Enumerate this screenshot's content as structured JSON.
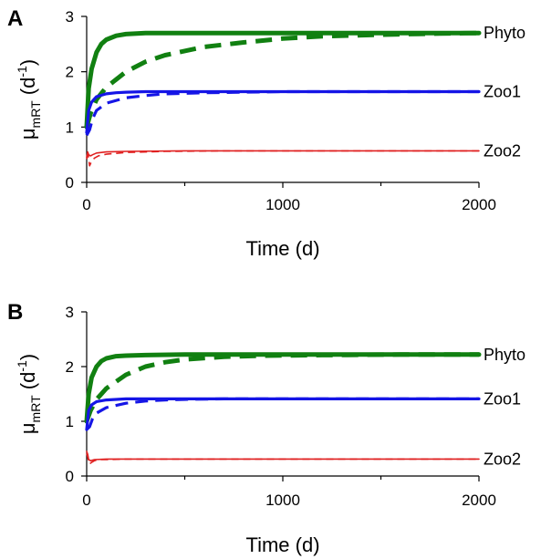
{
  "chart_data": [
    {
      "type": "line",
      "panel": "A",
      "xlabel": "Time (d)",
      "ylabel": {
        "mu": "μ",
        "sub": "mRT",
        "open": " (d",
        "sup": "-1",
        "close": ")"
      },
      "xlim": [
        0,
        2000
      ],
      "ylim": [
        0,
        3
      ],
      "xticks": [
        0,
        1000,
        2000
      ],
      "yticks": [
        0,
        1,
        2,
        3
      ],
      "grid": false,
      "legend": "series labels at right end of each line",
      "series": [
        {
          "name": "Phyto",
          "color": "#118011",
          "style": "solid",
          "width": 5,
          "x": [
            0,
            10,
            25,
            50,
            75,
            100,
            150,
            200,
            300,
            400,
            600,
            1000,
            1500,
            2000
          ],
          "y": [
            1.0,
            1.7,
            2.05,
            2.35,
            2.5,
            2.58,
            2.65,
            2.68,
            2.7,
            2.7,
            2.7,
            2.7,
            2.7,
            2.7
          ]
        },
        {
          "name": "Phyto",
          "color": "#118011",
          "style": "dashed",
          "width": 5,
          "x": [
            0,
            20,
            50,
            100,
            200,
            300,
            400,
            600,
            800,
            1000,
            1200,
            1500,
            1800,
            2000
          ],
          "y": [
            1.0,
            1.25,
            1.5,
            1.72,
            2.0,
            2.18,
            2.3,
            2.45,
            2.53,
            2.6,
            2.64,
            2.67,
            2.69,
            2.7
          ]
        },
        {
          "name": "Zoo1",
          "color": "#1515e6",
          "style": "solid",
          "width": 3.2,
          "x": [
            0,
            10,
            25,
            50,
            100,
            150,
            200,
            300,
            500,
            1000,
            2000
          ],
          "y": [
            0.9,
            1.3,
            1.45,
            1.55,
            1.6,
            1.62,
            1.63,
            1.64,
            1.64,
            1.64,
            1.64
          ]
        },
        {
          "name": "Zoo1",
          "color": "#1515e6",
          "style": "dashed",
          "width": 3.2,
          "x": [
            0,
            15,
            30,
            50,
            100,
            200,
            300,
            400,
            600,
            800,
            1000,
            1500,
            2000
          ],
          "y": [
            0.85,
            0.95,
            1.15,
            1.3,
            1.43,
            1.53,
            1.57,
            1.6,
            1.62,
            1.63,
            1.64,
            1.64,
            1.64
          ]
        },
        {
          "name": "Zoo2",
          "color": "#e02020",
          "style": "solid",
          "width": 1.6,
          "x": [
            0,
            5,
            10,
            20,
            30,
            50,
            100,
            200,
            500,
            1000,
            2000
          ],
          "y": [
            0.45,
            0.55,
            0.5,
            0.48,
            0.5,
            0.53,
            0.55,
            0.56,
            0.57,
            0.57,
            0.57
          ]
        },
        {
          "name": "Zoo2",
          "color": "#e02020",
          "style": "dashed",
          "width": 1.6,
          "x": [
            0,
            8,
            15,
            25,
            40,
            60,
            100,
            200,
            400,
            700,
            1000,
            2000
          ],
          "y": [
            0.42,
            0.5,
            0.3,
            0.38,
            0.44,
            0.48,
            0.51,
            0.54,
            0.56,
            0.57,
            0.57,
            0.57
          ]
        }
      ]
    },
    {
      "type": "line",
      "panel": "B",
      "xlabel": "Time (d)",
      "ylabel": {
        "mu": "μ",
        "sub": "mRT",
        "open": " (d",
        "sup": "-1",
        "close": ")"
      },
      "xlim": [
        0,
        2000
      ],
      "ylim": [
        0,
        3
      ],
      "xticks": [
        0,
        1000,
        2000
      ],
      "yticks": [
        0,
        1,
        2,
        3
      ],
      "grid": false,
      "legend": "series labels at right end of each line",
      "series": [
        {
          "name": "Phyto",
          "color": "#118011",
          "style": "solid",
          "width": 5,
          "x": [
            0,
            10,
            25,
            50,
            75,
            100,
            150,
            200,
            300,
            500,
            1000,
            2000
          ],
          "y": [
            1.0,
            1.5,
            1.8,
            2.0,
            2.1,
            2.15,
            2.19,
            2.2,
            2.21,
            2.22,
            2.22,
            2.22
          ]
        },
        {
          "name": "Phyto",
          "color": "#118011",
          "style": "dashed",
          "width": 5,
          "x": [
            0,
            20,
            50,
            100,
            200,
            300,
            400,
            500,
            700,
            900,
            1200,
            1600,
            2000
          ],
          "y": [
            1.0,
            1.2,
            1.4,
            1.6,
            1.85,
            2.0,
            2.08,
            2.13,
            2.18,
            2.2,
            2.21,
            2.22,
            2.22
          ]
        },
        {
          "name": "Zoo1",
          "color": "#1515e6",
          "style": "solid",
          "width": 3.2,
          "x": [
            0,
            10,
            25,
            50,
            100,
            150,
            200,
            400,
            1000,
            2000
          ],
          "y": [
            0.85,
            1.2,
            1.3,
            1.36,
            1.39,
            1.4,
            1.41,
            1.41,
            1.41,
            1.41
          ]
        },
        {
          "name": "Zoo1",
          "color": "#1515e6",
          "style": "dashed",
          "width": 3.2,
          "x": [
            0,
            15,
            30,
            50,
            100,
            200,
            300,
            400,
            500,
            700,
            1000,
            1500,
            2000
          ],
          "y": [
            0.85,
            0.9,
            1.05,
            1.15,
            1.25,
            1.33,
            1.37,
            1.39,
            1.4,
            1.41,
            1.41,
            1.41,
            1.41
          ]
        },
        {
          "name": "Zoo2",
          "color": "#e02020",
          "style": "solid",
          "width": 1.6,
          "x": [
            0,
            5,
            10,
            20,
            40,
            100,
            300,
            1000,
            2000
          ],
          "y": [
            0.45,
            0.4,
            0.3,
            0.28,
            0.3,
            0.31,
            0.31,
            0.31,
            0.31
          ]
        },
        {
          "name": "Zoo2",
          "color": "#e02020",
          "style": "dashed",
          "width": 1.6,
          "x": [
            0,
            8,
            15,
            25,
            40,
            60,
            100,
            200,
            500,
            1000,
            2000
          ],
          "y": [
            0.42,
            0.3,
            0.22,
            0.25,
            0.28,
            0.3,
            0.3,
            0.31,
            0.31,
            0.31,
            0.31
          ]
        }
      ]
    }
  ]
}
